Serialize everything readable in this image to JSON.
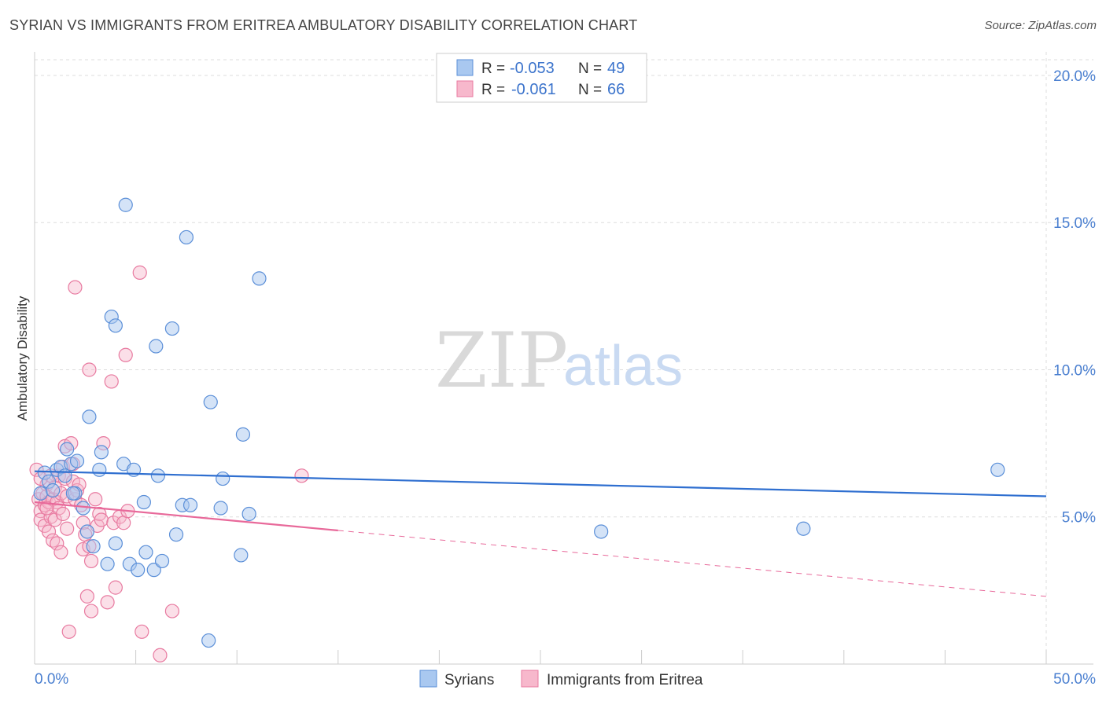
{
  "title": "SYRIAN VS IMMIGRANTS FROM ERITREA AMBULATORY DISABILITY CORRELATION CHART",
  "source": "Source: ZipAtlas.com",
  "watermark": {
    "zip": "ZIP",
    "atlas": "atlas"
  },
  "colors": {
    "blue_fill": "#a9c8f0",
    "blue_stroke": "#5b8fd8",
    "blue_line": "#2f6fd0",
    "pink_fill": "#f7b8cc",
    "pink_stroke": "#e87aa0",
    "pink_line": "#e8699a",
    "grid": "#dddddd",
    "tick_text": "#4a7fd0"
  },
  "legend": {
    "rows": [
      {
        "r_label": "R =",
        "r_value": "-0.053",
        "n_label": "N =",
        "n_value": "49"
      },
      {
        "r_label": "R =",
        "r_value": "-0.061",
        "n_label": "N =",
        "n_value": "66"
      }
    ]
  },
  "chart_data": {
    "type": "scatter",
    "title": "SYRIAN VS IMMIGRANTS FROM ERITREA AMBULATORY DISABILITY CORRELATION CHART",
    "xlabel": "",
    "ylabel": "Ambulatory Disability",
    "xlim": [
      0,
      50
    ],
    "ylim": [
      0,
      20.8
    ],
    "x_tick_labels": [
      "0.0%",
      "50.0%"
    ],
    "y_ticks": [
      5,
      10,
      15,
      20
    ],
    "y_tick_labels": [
      "5.0%",
      "10.0%",
      "15.0%",
      "20.0%"
    ],
    "grid": true,
    "legend_position": "bottom",
    "series": [
      {
        "name": "Syrians",
        "color": "#5b8fd8",
        "trend": {
          "x": [
            0,
            50
          ],
          "y": [
            6.55,
            5.7
          ],
          "dashed_from": null
        },
        "points": [
          [
            0.3,
            5.8
          ],
          [
            0.5,
            6.5
          ],
          [
            0.7,
            6.2
          ],
          [
            0.9,
            5.9
          ],
          [
            1.1,
            6.6
          ],
          [
            1.3,
            6.7
          ],
          [
            1.5,
            6.4
          ],
          [
            1.6,
            7.3
          ],
          [
            1.8,
            6.8
          ],
          [
            2.0,
            5.8
          ],
          [
            2.1,
            6.9
          ],
          [
            2.4,
            5.3
          ],
          [
            2.6,
            4.5
          ],
          [
            2.7,
            8.4
          ],
          [
            2.9,
            4.0
          ],
          [
            3.2,
            6.6
          ],
          [
            3.3,
            7.2
          ],
          [
            3.6,
            3.4
          ],
          [
            3.8,
            11.8
          ],
          [
            4.0,
            11.5
          ],
          [
            4.0,
            4.1
          ],
          [
            4.4,
            6.8
          ],
          [
            4.5,
            15.6
          ],
          [
            4.7,
            3.4
          ],
          [
            4.9,
            6.6
          ],
          [
            5.1,
            3.2
          ],
          [
            5.4,
            5.5
          ],
          [
            5.5,
            3.8
          ],
          [
            5.9,
            3.2
          ],
          [
            6.0,
            10.8
          ],
          [
            6.1,
            6.4
          ],
          [
            6.3,
            3.5
          ],
          [
            6.8,
            11.4
          ],
          [
            7.0,
            4.4
          ],
          [
            7.3,
            5.4
          ],
          [
            7.5,
            14.5
          ],
          [
            7.7,
            5.4
          ],
          [
            8.6,
            0.8
          ],
          [
            8.7,
            8.9
          ],
          [
            9.2,
            5.3
          ],
          [
            9.3,
            6.3
          ],
          [
            10.2,
            3.7
          ],
          [
            10.3,
            7.8
          ],
          [
            10.6,
            5.1
          ],
          [
            11.1,
            13.1
          ],
          [
            28.0,
            4.5
          ],
          [
            38.0,
            4.6
          ],
          [
            47.6,
            6.6
          ],
          [
            1.9,
            5.8
          ]
        ]
      },
      {
        "name": "Immigrants from Eritrea",
        "color": "#e87aa0",
        "trend": {
          "x": [
            0,
            50
          ],
          "y": [
            5.5,
            2.3
          ],
          "dashed_from": 15
        },
        "points": [
          [
            0.1,
            6.6
          ],
          [
            0.2,
            5.6
          ],
          [
            0.3,
            5.2
          ],
          [
            0.3,
            4.9
          ],
          [
            0.4,
            5.8
          ],
          [
            0.5,
            5.4
          ],
          [
            0.5,
            4.7
          ],
          [
            0.6,
            6.1
          ],
          [
            0.6,
            5.7
          ],
          [
            0.7,
            5.5
          ],
          [
            0.7,
            4.5
          ],
          [
            0.8,
            5.0
          ],
          [
            0.8,
            6.4
          ],
          [
            0.9,
            4.2
          ],
          [
            0.9,
            5.6
          ],
          [
            1.0,
            6.0
          ],
          [
            1.0,
            4.9
          ],
          [
            1.1,
            5.5
          ],
          [
            1.1,
            4.1
          ],
          [
            1.2,
            5.3
          ],
          [
            1.2,
            6.4
          ],
          [
            1.3,
            3.8
          ],
          [
            1.3,
            5.8
          ],
          [
            1.4,
            6.7
          ],
          [
            1.4,
            5.1
          ],
          [
            1.5,
            7.4
          ],
          [
            1.5,
            6.3
          ],
          [
            1.6,
            5.7
          ],
          [
            1.6,
            4.6
          ],
          [
            1.7,
            1.1
          ],
          [
            1.8,
            7.5
          ],
          [
            1.9,
            6.8
          ],
          [
            1.9,
            6.2
          ],
          [
            2.0,
            12.8
          ],
          [
            2.0,
            5.6
          ],
          [
            2.1,
            5.9
          ],
          [
            2.2,
            6.1
          ],
          [
            2.3,
            5.4
          ],
          [
            2.4,
            4.8
          ],
          [
            2.4,
            3.9
          ],
          [
            2.5,
            4.4
          ],
          [
            2.6,
            2.3
          ],
          [
            2.7,
            10.0
          ],
          [
            2.7,
            4.0
          ],
          [
            2.8,
            1.8
          ],
          [
            2.8,
            3.5
          ],
          [
            3.0,
            5.6
          ],
          [
            3.1,
            4.7
          ],
          [
            3.2,
            5.1
          ],
          [
            3.3,
            4.9
          ],
          [
            3.4,
            7.5
          ],
          [
            3.6,
            2.1
          ],
          [
            3.8,
            9.6
          ],
          [
            3.9,
            4.8
          ],
          [
            4.0,
            2.6
          ],
          [
            4.2,
            5.0
          ],
          [
            4.4,
            4.8
          ],
          [
            4.5,
            10.5
          ],
          [
            4.6,
            5.2
          ],
          [
            5.2,
            13.3
          ],
          [
            5.3,
            1.1
          ],
          [
            6.2,
            0.3
          ],
          [
            6.8,
            1.8
          ],
          [
            13.2,
            6.4
          ],
          [
            0.3,
            6.3
          ],
          [
            0.6,
            5.3
          ]
        ]
      }
    ]
  }
}
